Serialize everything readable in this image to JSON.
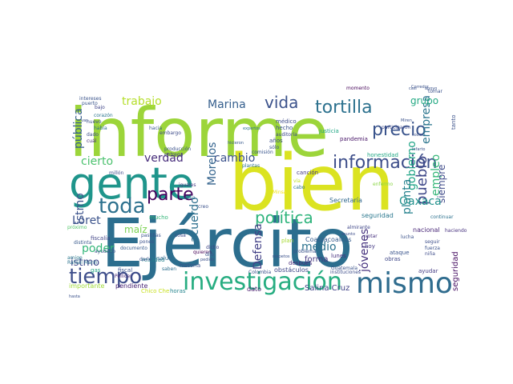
{
  "words": [
    {
      "text": "informe",
      "color": "#9cd53a"
    },
    {
      "text": "bien",
      "color": "#dbe321"
    },
    {
      "text": "Ejército",
      "color": "#2c6e8e"
    },
    {
      "text": "gente",
      "color": "#1f958b"
    },
    {
      "text": "mismo",
      "color": "#2f6c8e"
    },
    {
      "text": "investigación",
      "color": "#27ad81"
    },
    {
      "text": "información",
      "color": "#3d4e8a"
    },
    {
      "text": "tortilla",
      "color": "#2c718e"
    },
    {
      "text": "toda",
      "color": "#2d718e"
    },
    {
      "text": "parte",
      "color": "#44015d"
    },
    {
      "text": "tiempo",
      "color": "#3d4d8a"
    },
    {
      "text": "política",
      "color": "#2fb47c"
    },
    {
      "text": "precio",
      "color": "#3a548c"
    },
    {
      "text": "vida",
      "color": "#3b528b"
    },
    {
      "text": "Marina",
      "color": "#355f8d"
    },
    {
      "text": "trabajo",
      "color": "#b5de2b"
    },
    {
      "text": "pueblo",
      "color": "#3f4889"
    },
    {
      "text": "cierto",
      "color": "#4ac16d"
    },
    {
      "text": "verdad",
      "color": "#472d7b"
    },
    {
      "text": "empresa",
      "color": "#2b758e"
    },
    {
      "text": "gobierno",
      "color": "#20a486"
    },
    {
      "text": "Morelos",
      "color": "#33638d"
    },
    {
      "text": "cambio",
      "color": "#3b528b"
    },
    {
      "text": "Oaxaca",
      "color": "#21918c"
    },
    {
      "text": "Loret",
      "color": "#3b528b"
    },
    {
      "text": "poder",
      "color": "#34b679"
    },
    {
      "text": "istmo",
      "color": "#3e4989"
    },
    {
      "text": "acuerdo",
      "color": "#2d708e"
    },
    {
      "text": "Defensa",
      "color": "#424086"
    },
    {
      "text": "medio",
      "color": "#2c728e"
    },
    {
      "text": "jóvenes",
      "color": "#46327e"
    },
    {
      "text": "planta",
      "color": "#26828e"
    },
    {
      "text": "empleo",
      "color": "#35b779"
    },
    {
      "text": "siempre",
      "color": "#3e4a89"
    },
    {
      "text": "grupo",
      "color": "#23a983"
    },
    {
      "text": "pública",
      "color": "#365d8d"
    },
    {
      "text": "maíz",
      "color": "#7ad151"
    },
    {
      "text": "forma",
      "color": "#453781"
    },
    {
      "text": "Salina Cruz",
      "color": "#404387"
    },
    {
      "text": "importante",
      "color": "#a0da39"
    },
    {
      "text": "pendiente",
      "color": "#482475"
    },
    {
      "text": "Coatzacoalcos",
      "color": "#471063"
    },
    {
      "text": "seguridad",
      "color": "#365c8d"
    },
    {
      "text": "Secretaría",
      "color": "#2a778e"
    },
    {
      "text": "nacional",
      "color": "#31688e"
    },
    {
      "text": "dato",
      "color": "#482677"
    },
    {
      "text": "obstáculos",
      "color": "#481b6d"
    },
    {
      "text": "después",
      "color": "#3f4788"
    },
    {
      "text": "lunes",
      "color": "#482878"
    },
    {
      "text": "fiscal",
      "color": "#46307e"
    },
    {
      "text": "realidad",
      "color": "#3a548c"
    },
    {
      "text": "historia",
      "color": "#25838e"
    },
    {
      "text": "plan",
      "color": "#3b518b"
    },
    {
      "text": "salud",
      "color": "#a8db34"
    },
    {
      "text": "gas",
      "color": "#31688e"
    },
    {
      "text": "Chico Che",
      "color": "#22a884"
    },
    {
      "text": "fiscalía",
      "color": "#c8e020"
    },
    {
      "text": "horas",
      "color": "#414487"
    },
    {
      "text": "Pellicer",
      "color": "#25858e"
    },
    {
      "text": "médico",
      "color": "#472a7a"
    },
    {
      "text": "hecho",
      "color": "#3e4c8a"
    },
    {
      "text": "justicia",
      "color": "#3a538b"
    },
    {
      "text": "pandemia",
      "color": "#22a785"
    },
    {
      "text": "canción",
      "color": "#481668"
    },
    {
      "text": "darle",
      "color": "#443a83"
    },
    {
      "text": "saben",
      "color": "#3b528b"
    },
    {
      "text": "dicho",
      "color": "#2e6f8e"
    },
    {
      "text": "quieren",
      "color": "#3f4788"
    },
    {
      "text": "documento",
      "color": "#440154"
    },
    {
      "text": "creo",
      "color": "#375a8c"
    },
    {
      "text": "actúa",
      "color": "#3b528b"
    },
    {
      "text": "iguales",
      "color": "#2e6e8e"
    },
    {
      "text": "próximo",
      "color": "#453882"
    },
    {
      "text": "amigo",
      "color": "#52c569"
    },
    {
      "text": "ayudado",
      "color": "#2a788e"
    },
    {
      "text": "dado",
      "color": "#3b528b"
    },
    {
      "text": "nuevo",
      "color": "#3c4f8a"
    },
    {
      "text": "corazón",
      "color": "#3d4e8a"
    },
    {
      "text": "puerto",
      "color": "#2b748e"
    },
    {
      "text": "bajo",
      "color": "#39568c"
    },
    {
      "text": "intereses",
      "color": "#404588"
    },
    {
      "text": "había",
      "color": "#3a538b"
    },
    {
      "text": "cuál",
      "color": "#2e6d8e"
    },
    {
      "text": "embargo",
      "color": "#472c7a"
    },
    {
      "text": "hacia",
      "color": "#3e4c8a"
    },
    {
      "text": "producción",
      "color": "#38598c"
    },
    {
      "text": "entrega",
      "color": "#3b528b"
    },
    {
      "text": "plantas",
      "color": "#423f85"
    },
    {
      "text": "comisión",
      "color": "#2c718e"
    },
    {
      "text": "años",
      "color": "#39558c"
    },
    {
      "text": "sólo",
      "color": "#3d4d8a"
    },
    {
      "text": "auditoría",
      "color": "#3b528b"
    },
    {
      "text": "Minsa",
      "color": "#3e4989"
    },
    {
      "text": "cabo",
      "color": "#f1e51d"
    },
    {
      "text": "vía",
      "color": "#2c738e"
    },
    {
      "text": "hoy",
      "color": "#bddf26"
    },
    {
      "text": "votar",
      "color": "#443983"
    },
    {
      "text": "ataque",
      "color": "#46307e"
    },
    {
      "text": "obras",
      "color": "#3a548c"
    },
    {
      "text": "seguir",
      "color": "#3f4889"
    },
    {
      "text": "fuerza",
      "color": "#3d4e8a"
    },
    {
      "text": "ayudar",
      "color": "#3b528b"
    },
    {
      "text": "continuar",
      "color": "#443b84"
    },
    {
      "text": "Guatemala",
      "color": "#2c718e"
    },
    {
      "text": "Colombia",
      "color": "#3b528b"
    },
    {
      "text": "almirante",
      "color": "#3b518b"
    },
    {
      "text": "enfermo",
      "color": "#3f4788"
    },
    {
      "text": "millón",
      "color": "#8bd646"
    },
    {
      "text": "pones",
      "color": "#3e4c8a"
    },
    {
      "text": "pastillas",
      "color": "#3b528b"
    },
    {
      "text": "cosa",
      "color": "#3a548c"
    },
    {
      "text": "dijo",
      "color": "#3e4a89"
    },
    {
      "text": "problema",
      "color": "#39568c"
    },
    {
      "text": "instituciones",
      "color": "#3b528b"
    },
    {
      "text": "lucha",
      "color": "#3d4d8a"
    },
    {
      "text": "haciendo",
      "color": "#3b528b"
    },
    {
      "text": "niña",
      "color": "#46317e"
    },
    {
      "text": "tomar",
      "color": "#3e4c8a"
    },
    {
      "text": "casi",
      "color": "#3b528b"
    },
    {
      "text": "apoyo",
      "color": "#3b528b"
    },
    {
      "text": "momento",
      "color": "#3b528b"
    },
    {
      "text": "hicieron",
      "color": "#450559"
    },
    {
      "text": "expertos",
      "color": "#38598c"
    },
    {
      "text": "participaron",
      "color": "#2c738e"
    },
    {
      "text": "Miren",
      "color": "#3e4a89"
    },
    {
      "text": "social",
      "color": "#3b528b"
    },
    {
      "text": "infarto",
      "color": "#3b528b"
    },
    {
      "text": "honestidad",
      "color": "#3b528b"
    },
    {
      "text": "Corredor",
      "color": "#22a884"
    },
    {
      "text": "Rafael Marín",
      "color": "#3b528b"
    },
    {
      "text": "distinta",
      "color": "#2c728e"
    },
    {
      "text": "asunto",
      "color": "#38598c"
    },
    {
      "text": "pedido",
      "color": "#3d4d8a"
    },
    {
      "text": "mucho",
      "color": "#3b528b"
    },
    {
      "text": "respetos",
      "color": "#34b679"
    },
    {
      "text": "van",
      "color": "#3b528b"
    },
    {
      "text": "tanto",
      "color": "#3b528b"
    },
    {
      "text": "hasta",
      "color": "#3b528b"
    }
  ]
}
